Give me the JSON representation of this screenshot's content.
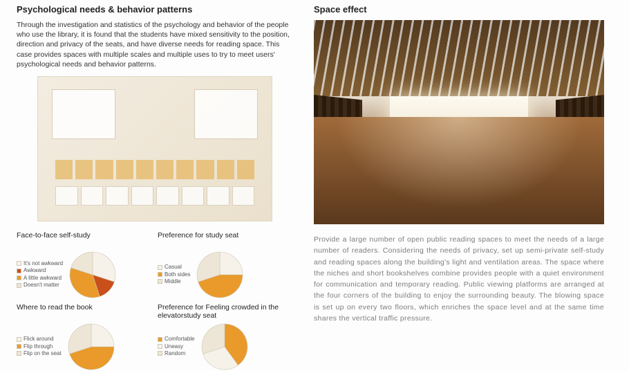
{
  "left": {
    "heading": "Psychological needs & behavior patterns",
    "intro": "Through the investigation and statistics of the psychology and behavior of the people who use the library, it is found that the students have mixed sensitivity to the position, direction and privacy of the seats, and have diverse needs for reading space. This case provides spaces with multiple scales and multiple uses to try to meet users' psychological needs and behavior patterns.",
    "charts": [
      {
        "title": "Face-to-face self-study",
        "slices": [
          {
            "label": "It's not awkward",
            "value": 30,
            "color": "#f6f2ea"
          },
          {
            "label": "Awkward",
            "value": 15,
            "color": "#c9501a"
          },
          {
            "label": "A little awkward",
            "value": 35,
            "color": "#e99a2b"
          },
          {
            "label": "Doesn't matter",
            "value": 20,
            "color": "#ede6d6"
          }
        ]
      },
      {
        "title": "Preference for study seat",
        "slices": [
          {
            "label": "Casual",
            "value": 25,
            "color": "#f6f2ea"
          },
          {
            "label": "Both sides",
            "value": 45,
            "color": "#e99a2b"
          },
          {
            "label": "Middle",
            "value": 30,
            "color": "#ede6d6"
          }
        ]
      },
      {
        "title": "Where to read the book",
        "slices": [
          {
            "label": "Flick around",
            "value": 25,
            "color": "#f6f2ea"
          },
          {
            "label": "Flip through",
            "value": 45,
            "color": "#e99a2b"
          },
          {
            "label": "Flip on the seat",
            "value": 30,
            "color": "#ede6d6"
          }
        ]
      },
      {
        "title": "Preference for Feeling crowded in the elevatorstudy seat",
        "slices": [
          {
            "label": "Comfortable",
            "value": 40,
            "color": "#e99a2b"
          },
          {
            "label": "Uneasy",
            "value": 30,
            "color": "#f6f2ea"
          },
          {
            "label": "Random",
            "value": 30,
            "color": "#ede6d6"
          }
        ]
      }
    ]
  },
  "right": {
    "heading": "Space effect",
    "body": "Provide a large number of open public reading spaces to meet the needs of a large number of readers. Considering the needs of privacy, set up semi-private self-study and reading spaces along the building's light and ventilation areas. The space where the niches and short bookshelves combine provides people with a quiet environment for communication and temporary reading. Public viewing platforms are arranged at the four corners of the building to enjoy the surrounding beauty. The blowing space is set up on every two floors, which enriches the space level and at the same time shares the vertical traffic pressure."
  },
  "palette": {
    "accent": "#e99a2b",
    "accent_dark": "#c9501a",
    "neutral1": "#f6f2ea",
    "neutral2": "#ede6d6",
    "stroke": "#cfc7b5"
  }
}
